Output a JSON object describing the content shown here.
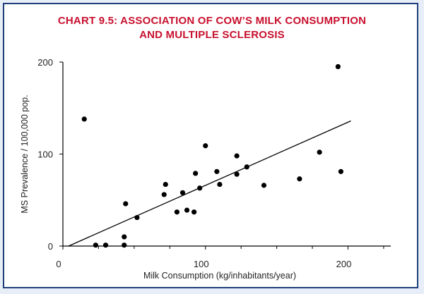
{
  "chart_data": {
    "type": "scatter",
    "title_lines": [
      "CHART 9.5: ASSOCIATION OF COW’S MILK CONSUMPTION",
      "AND MULTIPLE SCLEROSIS"
    ],
    "xlabel": "Milk Consumption (kg/inhabitants/year)",
    "ylabel": "MS Prevalence / 100,000 pop.",
    "xlim": [
      0,
      230
    ],
    "ylim": [
      0,
      200
    ],
    "x_ticks": [
      0,
      100,
      200
    ],
    "y_ticks": [
      0,
      100,
      200
    ],
    "x_tick_labels": [
      "0",
      "100",
      "200"
    ],
    "y_tick_labels": [
      "0",
      "100",
      "200"
    ],
    "grid": false,
    "points": [
      {
        "x": 15,
        "y": 138
      },
      {
        "x": 23,
        "y": 1
      },
      {
        "x": 30,
        "y": 1
      },
      {
        "x": 43,
        "y": 1
      },
      {
        "x": 43,
        "y": 10
      },
      {
        "x": 44,
        "y": 46
      },
      {
        "x": 52,
        "y": 31
      },
      {
        "x": 71,
        "y": 56
      },
      {
        "x": 72,
        "y": 67
      },
      {
        "x": 80,
        "y": 37
      },
      {
        "x": 84,
        "y": 58
      },
      {
        "x": 87,
        "y": 39
      },
      {
        "x": 92,
        "y": 37
      },
      {
        "x": 93,
        "y": 79
      },
      {
        "x": 96,
        "y": 63
      },
      {
        "x": 100,
        "y": 109
      },
      {
        "x": 108,
        "y": 81
      },
      {
        "x": 110,
        "y": 67
      },
      {
        "x": 122,
        "y": 98
      },
      {
        "x": 122,
        "y": 78
      },
      {
        "x": 129,
        "y": 86
      },
      {
        "x": 141,
        "y": 66
      },
      {
        "x": 166,
        "y": 73
      },
      {
        "x": 180,
        "y": 102
      },
      {
        "x": 193,
        "y": 195
      },
      {
        "x": 195,
        "y": 81
      }
    ],
    "trendline": {
      "x1": 4,
      "y1": 0,
      "x2": 202,
      "y2": 136
    },
    "colors": {
      "title": "#c8102e",
      "frame": "#1f3f7a",
      "marks": "#000000"
    }
  }
}
